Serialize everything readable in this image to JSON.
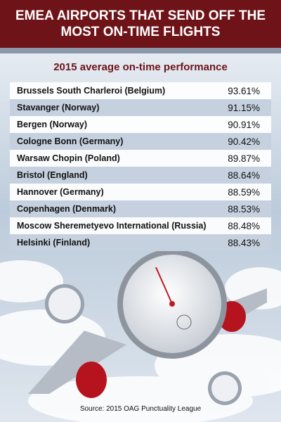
{
  "header": {
    "title": "EMEA AIRPORTS THAT SEND OFF THE MOST ON-TIME FLIGHTS"
  },
  "subtitle": "2015 average on-time performance",
  "table": {
    "rows": [
      [
        "Brussels South Charleroi (Belgium)",
        "93.61%"
      ],
      [
        "Stavanger (Norway)",
        "91.15%"
      ],
      [
        "Bergen (Norway)",
        "90.91%"
      ],
      [
        "Cologne Bonn (Germany)",
        "90.42%"
      ],
      [
        "Warsaw Chopin (Poland)",
        "89.87%"
      ],
      [
        "Bristol (England)",
        "88.64%"
      ],
      [
        "Hannover (Germany)",
        "88.59%"
      ],
      [
        "Copenhagen (Denmark)",
        "88.53%"
      ],
      [
        "Moscow Sheremetyevo International (Russia)",
        "88.48%"
      ],
      [
        "Helsinki (Finland)",
        "88.43%"
      ]
    ]
  },
  "source": "Source: 2015 OAG Punctuality League"
}
